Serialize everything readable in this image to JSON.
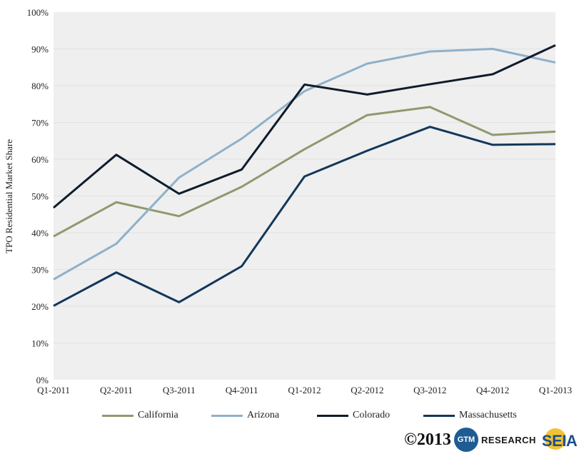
{
  "chart_data": {
    "type": "line",
    "categories": [
      "Q1-2011",
      "Q2-2011",
      "Q3-2011",
      "Q4-2011",
      "Q1-2012",
      "Q2-2012",
      "Q3-2012",
      "Q4-2012",
      "Q1-2013"
    ],
    "ylabel": "TPO Residential Market Share",
    "ylim": [
      0,
      100
    ],
    "yticks": [
      "0%",
      "10%",
      "20%",
      "30%",
      "40%",
      "50%",
      "60%",
      "70%",
      "80%",
      "90%",
      "100%"
    ],
    "grid": true,
    "legend_position": "bottom",
    "series": [
      {
        "name": "California",
        "color": "#8e9a6e",
        "values": [
          39,
          48.3,
          44.5,
          52.5,
          62.7,
          72,
          74.2,
          66.6,
          67.5
        ]
      },
      {
        "name": "Arizona",
        "color": "#8fb0c9",
        "values": [
          27.3,
          37,
          55,
          65.6,
          78.5,
          86,
          89.3,
          90,
          86.3
        ]
      },
      {
        "name": "Colorado",
        "color": "#0e1c2c",
        "values": [
          46.8,
          61.2,
          50.6,
          57.2,
          80.3,
          77.6,
          80.4,
          83.1,
          91
        ]
      },
      {
        "name": "Massachusetts",
        "color": "#12375a",
        "values": [
          20.1,
          29.2,
          21.1,
          30.9,
          55.3,
          62.3,
          68.8,
          63.9,
          64.1
        ]
      }
    ]
  },
  "footer": {
    "copyright": "©2013",
    "gtm_logo_text": "GTM",
    "gtm_research_text": "RESEARCH",
    "seia_text": "SEIA"
  }
}
